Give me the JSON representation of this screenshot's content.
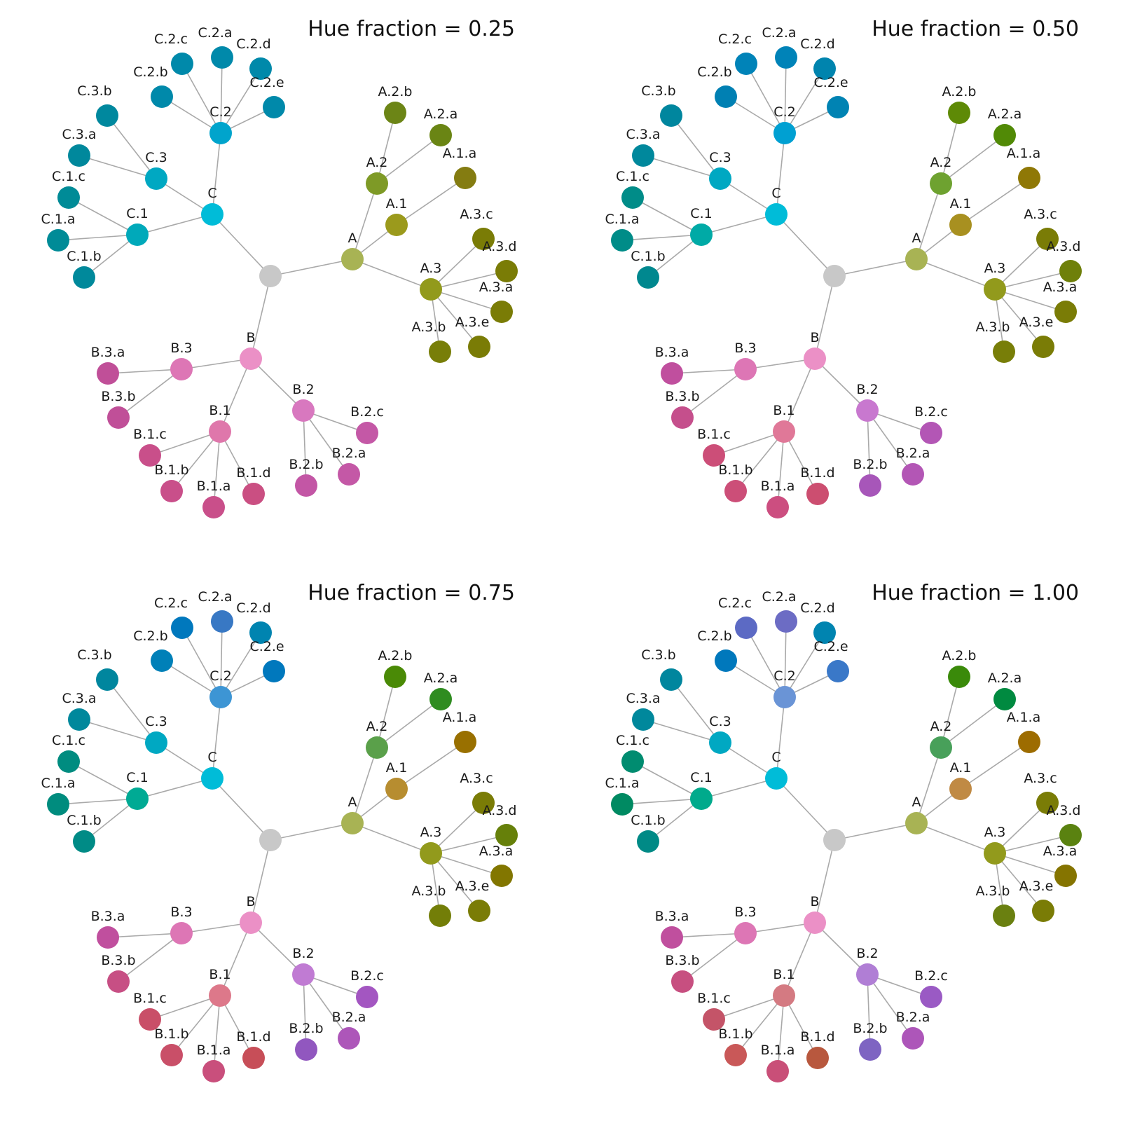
{
  "panels": [
    {
      "title": "Hue fraction = 0.25",
      "colors": {
        "root": "#c8c8c8",
        "A": "#a8b354",
        "A.1": "#9b9a1c",
        "A.1.a": "#847c11",
        "A.2": "#7e9a26",
        "A.2.a": "#6a8514",
        "A.2.b": "#6c8516",
        "A.3": "#929a1c",
        "A.3.a": "#7a7c06",
        "A.3.b": "#787e08",
        "A.3.c": "#7a7c06",
        "A.3.d": "#7a7c06",
        "A.3.e": "#7a7c06",
        "B": "#eb90c6",
        "B.1": "#df77ab",
        "B.1.a": "#c94f8a",
        "B.1.b": "#c94f8a",
        "B.1.c": "#c94f8a",
        "B.1.d": "#ca4f82",
        "B.2": "#d878bf",
        "B.2.a": "#c458a6",
        "B.2.b": "#c356a5",
        "B.2.c": "#c458a6",
        "B.3": "#dd76b5",
        "B.3.a": "#c04f98",
        "B.3.b": "#c04f98",
        "C": "#00bcd8",
        "C.1": "#00a9ba",
        "C.1.a": "#008b97",
        "C.1.b": "#00899b",
        "C.1.c": "#008b97",
        "C.2": "#00a4cc",
        "C.2.a": "#0089aa",
        "C.2.b": "#0089aa",
        "C.2.c": "#0089aa",
        "C.2.d": "#0089aa",
        "C.2.e": "#0089aa",
        "C.3": "#00a8c2",
        "C.3.a": "#00889c",
        "C.3.b": "#00889e"
      }
    },
    {
      "title": "Hue fraction = 0.50",
      "colors": {
        "root": "#c8c8c8",
        "A": "#a8b354",
        "A.1": "#a89020",
        "A.1.a": "#8f7806",
        "A.2": "#6ea230",
        "A.2.a": "#518a06",
        "A.2.b": "#5e8a06",
        "A.3": "#929a1c",
        "A.3.a": "#7a7c06",
        "A.3.b": "#787e08",
        "A.3.c": "#7a7c06",
        "A.3.d": "#6f800a",
        "A.3.e": "#7a7c06",
        "B": "#eb90c6",
        "B.1": "#e07898",
        "B.1.a": "#cc4e80",
        "B.1.b": "#cc4e78",
        "B.1.c": "#cc4e78",
        "B.1.d": "#cc4e70",
        "B.2": "#c878cf",
        "B.2.a": "#b356b5",
        "B.2.b": "#a756b9",
        "B.2.c": "#b356b5",
        "B.3": "#dd76b5",
        "B.3.a": "#c04f9e",
        "B.3.b": "#c54f8c",
        "C": "#00bcd8",
        "C.1": "#00aaa6",
        "C.1.a": "#008c88",
        "C.1.b": "#00888f",
        "C.1.c": "#008c88",
        "C.2": "#00a0d2",
        "C.2.a": "#0083b8",
        "C.2.b": "#0080b3",
        "C.2.c": "#0083b8",
        "C.2.d": "#0084ae",
        "C.2.e": "#0083b3",
        "C.3": "#00a8c2",
        "C.3.a": "#00889c",
        "C.3.b": "#00869e"
      }
    },
    {
      "title": "Hue fraction = 0.75",
      "colors": {
        "root": "#c8c8c8",
        "A": "#a8b354",
        "A.1": "#b78d30",
        "A.1.a": "#997000",
        "A.2": "#5aa04a",
        "A.2.a": "#2f8c20",
        "A.2.b": "#4a8a06",
        "A.3": "#929a1c",
        "A.3.a": "#827600",
        "A.3.b": "#737e08",
        "A.3.c": "#7a7c06",
        "A.3.d": "#66800a",
        "A.3.e": "#7a7c06",
        "B": "#eb90c6",
        "B.1": "#dd788a",
        "B.1.a": "#c94f7c",
        "B.1.b": "#c94f68",
        "B.1.c": "#c94f68",
        "B.1.d": "#c74e58",
        "B.2": "#c07bd3",
        "B.2.a": "#ad56b9",
        "B.2.b": "#9157bf",
        "B.2.c": "#a356c1",
        "B.3": "#dd76b5",
        "B.3.a": "#c04f9e",
        "B.3.b": "#c74f84",
        "C": "#00bcd8",
        "C.1": "#00aa94",
        "C.1.a": "#008c7e",
        "C.1.b": "#008b86",
        "C.1.c": "#008c80",
        "C.2": "#3d95d4",
        "C.2.a": "#3878c4",
        "C.2.b": "#0080b8",
        "C.2.c": "#0078bd",
        "C.2.d": "#0084b0",
        "C.2.e": "#0078bd",
        "C.3": "#00a8c2",
        "C.3.a": "#00889c",
        "C.3.b": "#00869e"
      }
    },
    {
      "title": "Hue fraction = 1.00",
      "colors": {
        "root": "#c8c8c8",
        "A": "#a8b354",
        "A.1": "#c08a44",
        "A.1.a": "#9d6c00",
        "A.2": "#48a05a",
        "A.2.a": "#008a40",
        "A.2.b": "#3a8a0a",
        "A.3": "#929a1c",
        "A.3.a": "#857400",
        "A.3.b": "#6a8010",
        "A.3.c": "#7a7c06",
        "A.3.d": "#5a8210",
        "A.3.e": "#7a7c06",
        "B": "#eb90c6",
        "B.1": "#d47a82",
        "B.1.a": "#c94f78",
        "B.1.b": "#c95858",
        "B.1.c": "#c45468",
        "B.1.d": "#b8583e",
        "B.2": "#b07ed5",
        "B.2.a": "#ad56b9",
        "B.2.b": "#7e64c2",
        "B.2.c": "#9a5ac4",
        "B.3": "#dd76b5",
        "B.3.a": "#c04f9e",
        "B.3.b": "#c74f80",
        "C": "#00bcd8",
        "C.1": "#00aa8c",
        "C.1.a": "#008a62",
        "C.1.b": "#008a86",
        "C.1.c": "#008c70",
        "C.2": "#6a94d6",
        "C.2.a": "#6c6cc4",
        "C.2.b": "#0078bc",
        "C.2.c": "#5c6ac4",
        "C.2.d": "#0084b0",
        "C.2.e": "#3a78c8",
        "C.3": "#00a8c2",
        "C.3.a": "#00889c",
        "C.3.b": "#00869e"
      }
    }
  ]
}
